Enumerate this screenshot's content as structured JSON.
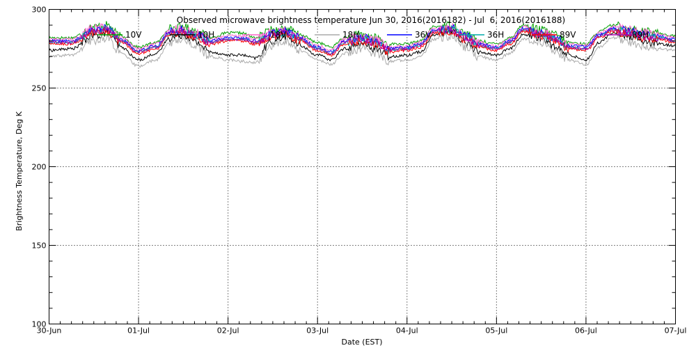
{
  "chart_data": {
    "type": "line",
    "title": "Observed microwave brightness temperature Jun 30, 2016(2016182) - Jul  6, 2016(2016188)",
    "xlabel": "Date (EST)",
    "ylabel": "Brightness Temperature, Deg K",
    "ylim": [
      100,
      300
    ],
    "yticks": [
      100,
      150,
      200,
      250,
      300
    ],
    "xlim": [
      0,
      7
    ],
    "xtick_labels": [
      "30-Jun",
      "01-Jul",
      "02-Jul",
      "03-Jul",
      "04-Jul",
      "05-Jul",
      "06-Jul",
      "07-Jul"
    ],
    "grid": true,
    "legend_position": "top",
    "x_days": [
      0,
      0.25,
      0.5,
      0.65,
      0.8,
      1.0,
      1.2,
      1.35,
      1.5,
      1.65,
      1.8,
      2.0,
      2.15,
      2.3,
      2.5,
      2.65,
      2.8,
      3.0,
      3.15,
      3.3,
      3.5,
      3.65,
      3.8,
      4.0,
      4.15,
      4.3,
      4.5,
      4.65,
      4.8,
      5.0,
      5.15,
      5.3,
      5.5,
      5.65,
      5.8,
      6.0,
      6.15,
      6.3,
      6.5,
      6.65,
      6.8,
      7.0
    ],
    "series": [
      {
        "name": "10V",
        "color": "#00a000",
        "values": [
          282,
          282,
          289,
          290,
          283,
          276,
          279,
          288,
          289,
          286,
          282,
          285,
          285,
          282,
          287,
          288,
          284,
          279,
          276,
          282,
          284,
          282,
          278,
          278,
          280,
          289,
          290,
          285,
          280,
          278,
          282,
          290,
          287,
          284,
          279,
          278,
          286,
          290,
          288,
          286,
          285,
          283
        ]
      },
      {
        "name": "10H",
        "color": "#000000",
        "values": [
          274,
          275,
          283,
          285,
          276,
          268,
          272,
          282,
          284,
          279,
          273,
          271,
          271,
          269,
          280,
          283,
          277,
          271,
          268,
          275,
          278,
          275,
          270,
          271,
          273,
          284,
          286,
          279,
          273,
          271,
          275,
          284,
          282,
          276,
          271,
          268,
          279,
          285,
          282,
          279,
          278,
          277
        ]
      },
      {
        "name": "18V",
        "color": "#ff66cc",
        "values": [
          281,
          281,
          288,
          289,
          282,
          275,
          278,
          287,
          288,
          285,
          281,
          283,
          283,
          281,
          286,
          287,
          283,
          277,
          274,
          281,
          283,
          281,
          276,
          277,
          279,
          288,
          289,
          284,
          279,
          277,
          281,
          289,
          286,
          283,
          278,
          277,
          285,
          289,
          287,
          285,
          284,
          282
        ]
      },
      {
        "name": "18H",
        "color": "#aaaaaa",
        "values": [
          270,
          271,
          280,
          282,
          272,
          264,
          268,
          279,
          281,
          276,
          270,
          268,
          267,
          266,
          277,
          280,
          274,
          268,
          265,
          272,
          275,
          272,
          267,
          268,
          270,
          281,
          283,
          276,
          270,
          268,
          272,
          281,
          279,
          273,
          268,
          265,
          276,
          282,
          279,
          276,
          275,
          274
        ]
      },
      {
        "name": "36V",
        "color": "#0000ff",
        "values": [
          280,
          280,
          287,
          288,
          281,
          274,
          277,
          286,
          287,
          284,
          280,
          282,
          282,
          280,
          285,
          286,
          282,
          276,
          273,
          280,
          282,
          280,
          275,
          276,
          278,
          287,
          288,
          283,
          278,
          276,
          280,
          288,
          285,
          282,
          277,
          276,
          284,
          288,
          286,
          284,
          283,
          281
        ]
      },
      {
        "name": "36H",
        "color": "#00aaaa",
        "values": [
          279,
          279,
          286,
          287,
          280,
          273,
          276,
          285,
          286,
          283,
          279,
          281,
          281,
          279,
          284,
          285,
          281,
          275,
          272,
          279,
          281,
          279,
          274,
          275,
          277,
          286,
          287,
          282,
          277,
          275,
          279,
          287,
          284,
          281,
          276,
          275,
          283,
          287,
          285,
          283,
          282,
          280
        ]
      },
      {
        "name": "89V",
        "color": "#ff0000",
        "values": [
          278,
          278,
          285,
          286,
          279,
          272,
          275,
          284,
          285,
          282,
          278,
          280,
          280,
          278,
          283,
          284,
          280,
          274,
          271,
          278,
          280,
          278,
          273,
          274,
          276,
          285,
          286,
          281,
          276,
          274,
          278,
          286,
          283,
          280,
          275,
          274,
          282,
          286,
          284,
          282,
          281,
          279
        ]
      },
      {
        "name": "89H",
        "color": "#aa00aa",
        "values": [
          279,
          279,
          286,
          287,
          280,
          273,
          276,
          285,
          286,
          283,
          279,
          281,
          281,
          279,
          284,
          285,
          281,
          275,
          272,
          279,
          281,
          279,
          274,
          275,
          277,
          286,
          287,
          282,
          277,
          275,
          279,
          287,
          284,
          281,
          276,
          275,
          283,
          287,
          285,
          283,
          282,
          280
        ]
      }
    ]
  }
}
